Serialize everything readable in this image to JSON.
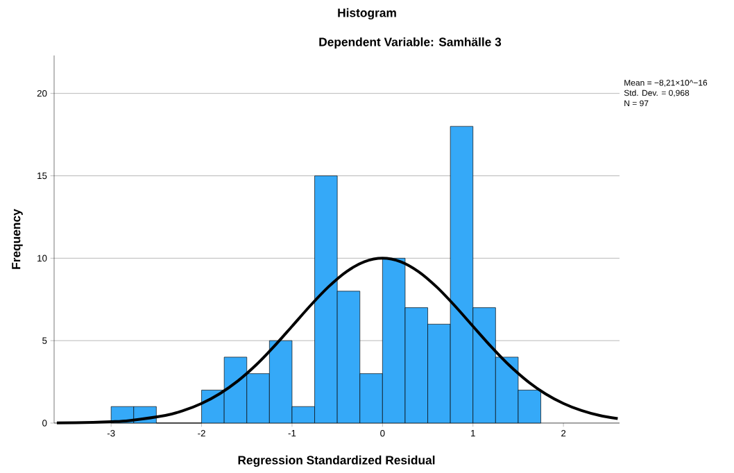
{
  "chart_data": {
    "type": "histogram",
    "title": "Histogram",
    "subtitle": "Dependent Variable: Samhälle 3",
    "xlabel": "Regression Standardized Residual",
    "ylabel": "Frequency",
    "bins": [
      -3,
      -2.75,
      -2.5,
      -2.25,
      -2,
      -1.75,
      -1.5,
      -1.25,
      -1,
      -0.75,
      -0.5,
      -0.25,
      0,
      0.25,
      0.5,
      0.75,
      1,
      1.25,
      1.5,
      1.75
    ],
    "values": [
      1,
      1,
      0,
      0,
      2,
      4,
      3,
      5,
      1,
      15,
      8,
      3,
      10,
      7,
      6,
      18,
      7,
      4,
      2
    ],
    "color": "#35a9f8",
    "series": [
      {
        "type": "line",
        "color": "#000000",
        "x": [
          -3.6,
          -3.2,
          -3.0,
          -2.8,
          -2.4,
          -2.2,
          -2.0,
          -1.8,
          -1.6,
          -1.4,
          -1.2,
          -1.0,
          -0.8,
          -0.6,
          -0.4,
          -0.2,
          0,
          0.2,
          0.4,
          0.6,
          0.8,
          1.0,
          1.2,
          1.4,
          1.6,
          1.8,
          2.0,
          2.2,
          2.4,
          2.6
        ],
        "values": [
          0.01,
          0.04,
          0.08,
          0.15,
          0.46,
          0.76,
          1.19,
          1.78,
          2.55,
          3.51,
          4.64,
          5.87,
          7.11,
          8.25,
          9.18,
          9.79,
          10,
          9.79,
          9.18,
          8.25,
          7.11,
          5.87,
          4.64,
          3.51,
          2.55,
          1.78,
          1.19,
          0.76,
          0.46,
          0.27
        ]
      }
    ],
    "annotations": [
      "Mean = −8,21×10^−16",
      "Std. Dev. = 0,968",
      "N = 97"
    ],
    "xlim": [
      -3.63,
      2.62
    ],
    "ylim": [
      0,
      22.3
    ],
    "xticks": [
      -3,
      -2,
      -1,
      0,
      1,
      2
    ],
    "yticks": [
      0,
      5,
      10,
      15,
      20
    ],
    "grid": "y"
  }
}
